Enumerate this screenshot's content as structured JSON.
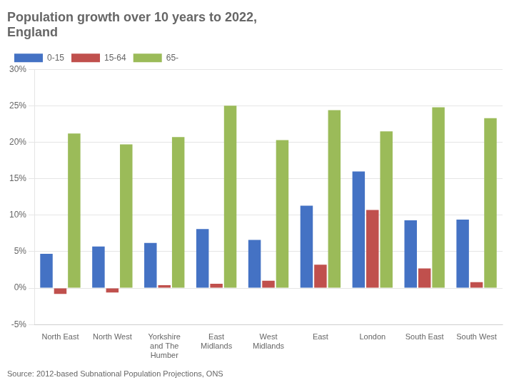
{
  "chart_data": {
    "type": "bar",
    "title": "Population growth over 10 years to 2022,\nEngland",
    "annotations": [
      "Source: 2012-based Subnational Population Projections, ONS"
    ],
    "categories": [
      "North East",
      "North West",
      "Yorkshire\nand The\nHumber",
      "East\nMidlands",
      "West\nMidlands",
      "East",
      "London",
      "South East",
      "South West"
    ],
    "series": [
      {
        "name": "0-15",
        "color": "#4472C4",
        "values": [
          4.7,
          5.7,
          6.2,
          8.1,
          6.6,
          11.3,
          16.0,
          9.3,
          9.4
        ]
      },
      {
        "name": "15-64",
        "color": "#C0504D",
        "values": [
          -0.8,
          -0.6,
          0.4,
          0.6,
          1.0,
          3.2,
          10.7,
          2.7,
          0.8
        ]
      },
      {
        "name": "65-",
        "color": "#9BBB59",
        "values": [
          21.2,
          19.7,
          20.7,
          25.0,
          20.3,
          24.4,
          21.5,
          24.8,
          23.3
        ]
      }
    ],
    "ylim": [
      -5,
      30
    ],
    "yticks": [
      {
        "value": -5,
        "label": "-5%"
      },
      {
        "value": 0,
        "label": "0%"
      },
      {
        "value": 5,
        "label": "5%"
      },
      {
        "value": 10,
        "label": "10%"
      },
      {
        "value": 15,
        "label": "15%"
      },
      {
        "value": 20,
        "label": "20%"
      },
      {
        "value": 25,
        "label": "25%"
      },
      {
        "value": 30,
        "label": "30%"
      }
    ],
    "grid": true,
    "legend": "upper left"
  }
}
